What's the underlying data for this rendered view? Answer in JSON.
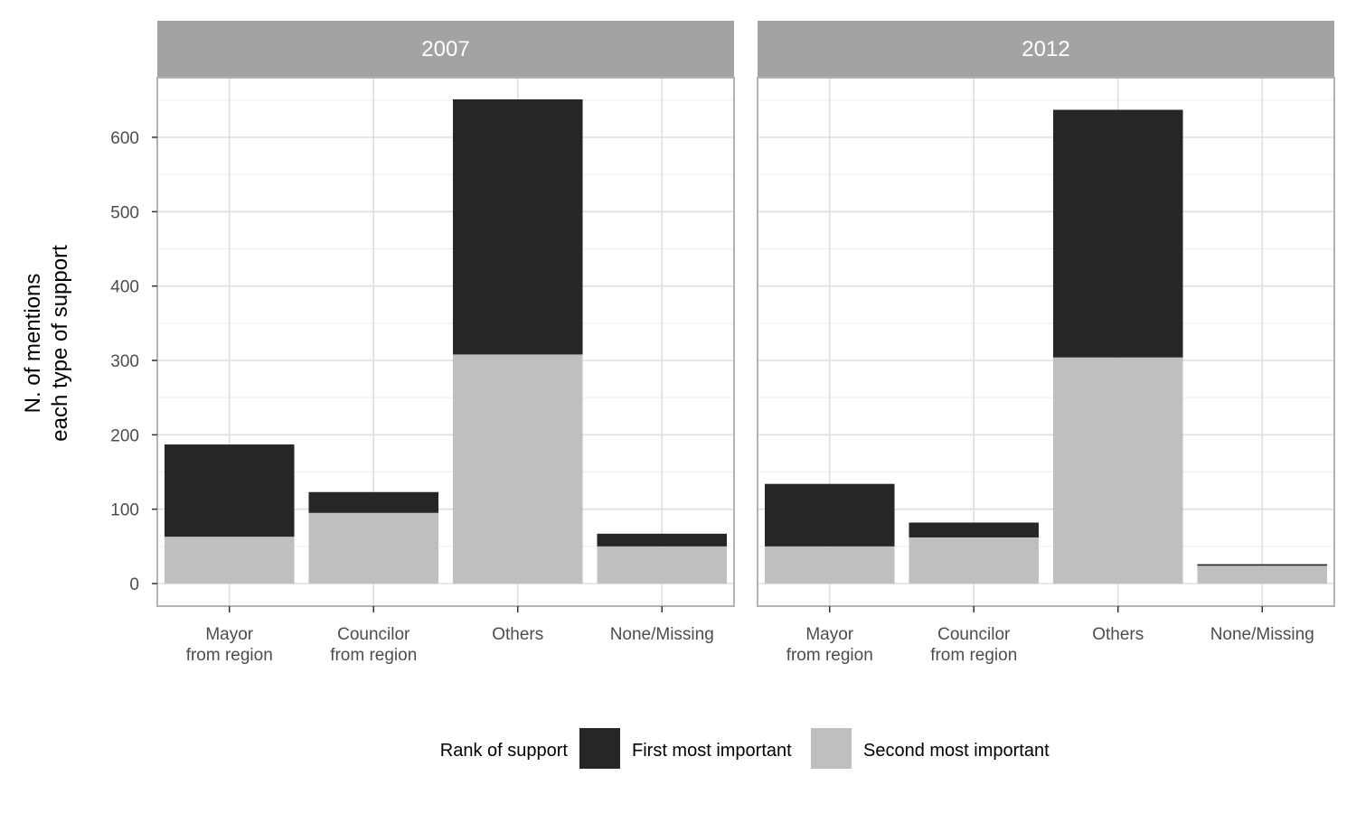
{
  "chart_data": {
    "type": "bar",
    "stacked": true,
    "ylabel": [
      "N. of mentions",
      "each type of support"
    ],
    "xlabel": "",
    "ylim": [
      0,
      680
    ],
    "yticks": [
      0,
      100,
      200,
      300,
      400,
      500,
      600
    ],
    "categories": [
      [
        "Mayor",
        "from region"
      ],
      [
        "Councilor",
        "from region"
      ],
      [
        "Others"
      ],
      [
        "None/Missing"
      ]
    ],
    "legend": {
      "title": "Rank of support",
      "position": "bottom",
      "items": [
        {
          "label": "First most important",
          "color": "#262626"
        },
        {
          "label": "Second most important",
          "color": "#bfbfbf"
        }
      ]
    },
    "panels": [
      {
        "label": "2007",
        "series": [
          {
            "name": "Second most important",
            "values": [
              63,
              95,
              308,
              50
            ]
          },
          {
            "name": "First most important",
            "values": [
              124,
              28,
              343,
              17
            ]
          }
        ]
      },
      {
        "label": "2012",
        "series": [
          {
            "name": "Second most important",
            "values": [
              50,
              62,
              304,
              24
            ]
          },
          {
            "name": "First most important",
            "values": [
              84,
              20,
              333,
              2
            ]
          }
        ]
      }
    ],
    "grid": true
  },
  "colors": {
    "strip": "#a3a3a3",
    "panel_border": "#b3b3b3",
    "grid_major": "#dedede",
    "grid_minor": "#ececec"
  }
}
